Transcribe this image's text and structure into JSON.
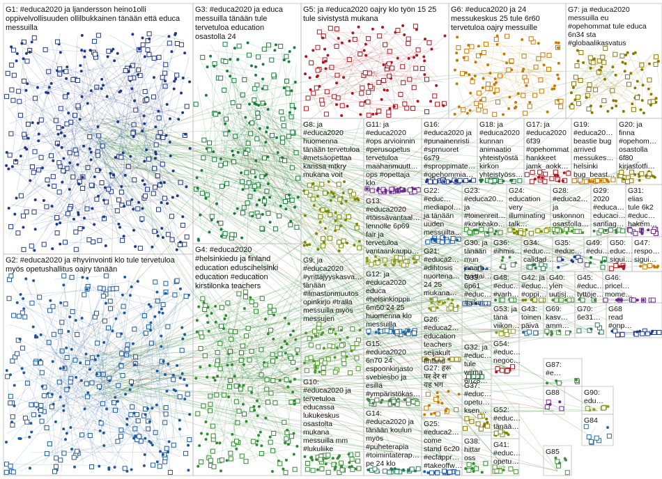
{
  "groups": [
    {
      "lines": [
        "G1: #educa2020 ja ljandersson heino1olli",
        "oppivelvollisuuden ollilbukkainen tänään että educa",
        "messuilla"
      ]
    },
    {
      "lines": [
        "G3: #educa2020 ja educa",
        "messuilla tänään tule",
        "tervetuloa education",
        "osastolla 24"
      ]
    },
    {
      "lines": [
        "G5: ja #educa2020 oajry klo työn 15 25",
        "tule sivistystä mukana"
      ]
    },
    {
      "lines": [
        "G6: #educa2020 ja 24",
        "messukeskus 25 tule 6r60",
        "tervetuloa oajry messuille"
      ]
    },
    {
      "lines": [
        "G7: ja #educa2020",
        "messuilla eu",
        "#opehommat tule educa",
        "6n34 sta",
        "#globaalikasvatus"
      ]
    },
    {
      "lines": [
        "G2: #educa2020 ja #hyvinvointi klo tule tervetuloa",
        "myös opetushallitus oajry tänään"
      ]
    },
    {
      "lines": [
        "G4: #educa2020",
        "#helsinkiedu ja finland",
        "education eduscihelsinki",
        "education #education",
        "kirstilonka teachers"
      ]
    },
    {
      "lines": [
        "G8: ja",
        "#educa2020",
        "huomenna",
        "tänään tervetuloa",
        "#metsäopettaa",
        "kanssa mtkry",
        "mukana voit"
      ]
    },
    {
      "lines": [
        "G9: ja",
        "#educa2020",
        "#yrittäjyyskasva…",
        "tänään",
        "#ilmastonmuutos",
        "opinkirjo #tralla",
        "messuilla myös",
        "messujen"
      ]
    },
    {
      "lines": [
        "G10:",
        "#educa2020 ja",
        "tervetuloa",
        "educassa",
        "lukukeskus",
        "osastolta",
        "mukana",
        "messuilla mm",
        "#lukuliike"
      ]
    },
    {
      "lines": [
        "G11: ja",
        "#educa2020",
        "#ops arvioinnin",
        "#perusopetus",
        "tervetuloa",
        "maahanmuutt…",
        "ops #opettaja",
        "klo"
      ]
    },
    {
      "lines": [
        "G13:",
        "#educa2020",
        "#töissävantaal…",
        "lennolle 6p69",
        "fair ja",
        "tervetuloa",
        "vantaankaupu…"
      ]
    },
    {
      "lines": [
        "G12: ja",
        "#educa2020",
        "educa",
        "#helsinkioppii",
        "6m50 24 25",
        "huomenna klo",
        "messuilla"
      ]
    },
    {
      "lines": [
        "G15:",
        "#educa2020",
        "6n70 24",
        "espoonkirjasto",
        "svebiesbo ja",
        "esillä",
        "#ympäristökas…"
      ]
    },
    {
      "lines": [
        "G14:",
        "#educa2020 ja",
        "tänään koulun",
        "myös",
        "#puheterapia",
        "#toimintaterap…",
        "pe 24 klo"
      ]
    },
    {
      "lines": [
        "G16:",
        "#educa2020 ja",
        "#punainenristi",
        "#sprnuoret",
        "6s79",
        "#sproppimate…",
        "#opehommia…"
      ]
    },
    {
      "lines": [
        "G18: ja",
        "#educa2020",
        "kunnan",
        "animaatio",
        "yhteistyöstä",
        "kirkon",
        "yhteistyöss…"
      ]
    },
    {
      "lines": [
        "G17: ja",
        "#educa2020",
        "6f39",
        "#opehommat",
        "hankkeet",
        "jamk_aokk…"
      ]
    },
    {
      "lines": [
        "G19:",
        "#educa20…",
        "beastie bug",
        "arrived",
        "messukes…",
        "helsinki",
        "bug_beast…"
      ]
    },
    {
      "lines": [
        "G20: ja",
        "finna",
        "#opehom…",
        "osastolla",
        "6f80",
        "kirjastotfi…"
      ]
    },
    {
      "lines": [
        "G22:",
        "#educ…",
        "mediapol…",
        "ja tänään",
        "uuden",
        "messuilta…"
      ]
    },
    {
      "lines": [
        "G23:",
        "#educa20…",
        "ja",
        "#toinenreit…",
        "#korkeako…"
      ]
    },
    {
      "lines": [
        "G24:",
        "education",
        "very",
        "illuminating",
        "talk…"
      ]
    },
    {
      "lines": [
        "G28:",
        "#educa2…",
        "ja",
        "uskonnon",
        "osastolla…"
      ]
    },
    {
      "lines": [
        "G29:",
        "2020",
        "#educa…",
        "educaci…",
        "santiag…"
      ]
    },
    {
      "lines": [
        "G31:",
        "elias",
        "tule 6k2",
        "#educ…",
        "hakem…"
      ]
    },
    {
      "lines": [
        "G21:",
        "#educa2…",
        "#dihtosis",
        "nuortena…",
        "24 25",
        "mukana…"
      ]
    },
    {
      "lines": [
        "G30: ja",
        "tänään",
        "mun",
        "jsaarh…",
        "twiittai…"
      ]
    },
    {
      "lines": [
        "G36:",
        "#ihmis…"
      ]
    },
    {
      "lines": [
        "G34:",
        "#educ…",
        "calidad…"
      ]
    },
    {
      "lines": [
        "G35:",
        "#educ…"
      ]
    },
    {
      "lines": [
        "G49:",
        "#edu…"
      ]
    },
    {
      "lines": [
        "G50:",
        "educ…",
        "sigui…"
      ]
    },
    {
      "lines": [
        "G47:",
        "respo…",
        "sigui…"
      ]
    },
    {
      "lines": [
        "G26:",
        "#educa2…",
        "education",
        "teachers",
        "seijakult",
        "finland"
      ]
    },
    {
      "lines": [
        "G33:",
        "6p61",
        "#educ…",
        "#aikui…"
      ]
    },
    {
      "lines": [
        "G48:",
        "#educ…",
        "#varh…"
      ]
    },
    {
      "lines": [
        "G42: ja",
        "#educ…",
        "#oppi…"
      ]
    },
    {
      "lines": [
        "G40:",
        "ylen",
        "uutisj…"
      ]
    },
    {
      "lines": [
        "G45:",
        "#educ…",
        "tyttöje…"
      ]
    },
    {
      "lines": [
        "G46:",
        "pricel…",
        "mome…"
      ]
    },
    {
      "lines": [
        "G53: ja",
        "tänä",
        "viikon…"
      ]
    },
    {
      "lines": [
        "G43:",
        "toinen",
        "päivä"
      ]
    },
    {
      "lines": [
        "G69:",
        "kasv…",
        "amm…"
      ]
    },
    {
      "lines": [
        "G70:",
        "6e31…"
      ]
    },
    {
      "lines": [
        "G68",
        "read",
        "#onp…"
      ]
    },
    {
      "lines": [
        "G32: ja",
        "#educ…",
        "tule",
        "wilma",
        "6n28…"
      ]
    },
    {
      "lines": [
        "G54:",
        "#educ…",
        "negoc…"
      ]
    },
    {
      "lines": [
        "G27: हरू",
        "पर देर स",
        "यह भग"
      ]
    },
    {
      "lines": [
        "G37:",
        "#educ…",
        "opetu…",
        "ksen…"
      ]
    },
    {
      "lines": [
        "G25:",
        "#educa2…",
        "come",
        "stand 6c20",
        "#ecfappr…",
        "#takeoffw…"
      ]
    },
    {
      "lines": [
        "G38:",
        "hittar",
        "oss"
      ]
    },
    {
      "lines": [
        "G52:",
        "#educ…",
        "tänää…"
      ]
    },
    {
      "lines": [
        "G41:",
        "#educ…",
        "opetu…"
      ]
    },
    {
      "lines": [
        "G87:",
        "#e…"
      ]
    },
    {
      "lines": [
        "G88"
      ]
    },
    {
      "lines": [
        "G90:",
        "edu…"
      ]
    },
    {
      "lines": [
        "G84"
      ]
    },
    {
      "lines": [
        "G85"
      ]
    }
  ]
}
